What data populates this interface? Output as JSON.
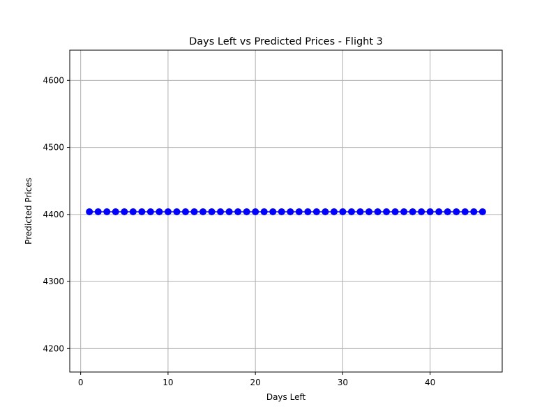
{
  "chart_data": {
    "type": "line",
    "title": "Days Left vs Predicted Prices - Flight 3",
    "xlabel": "Days Left",
    "ylabel": "Predicted Prices",
    "xlim": [
      -1.25,
      48.25
    ],
    "ylim": [
      4165,
      4645
    ],
    "xticks": [
      0,
      10,
      20,
      30,
      40
    ],
    "yticks": [
      4200,
      4300,
      4400,
      4500,
      4600
    ],
    "grid": true,
    "legend": "none",
    "series": [
      {
        "color": "#0000ff",
        "marker": "circle",
        "line": true,
        "x": [
          1,
          2,
          3,
          4,
          5,
          6,
          7,
          8,
          9,
          10,
          11,
          12,
          13,
          14,
          15,
          16,
          17,
          18,
          19,
          20,
          21,
          22,
          23,
          24,
          25,
          26,
          27,
          28,
          29,
          30,
          31,
          32,
          33,
          34,
          35,
          36,
          37,
          38,
          39,
          40,
          41,
          42,
          43,
          44,
          45,
          46
        ],
        "y": [
          4404,
          4404,
          4404,
          4404,
          4404,
          4404,
          4404,
          4404,
          4404,
          4404,
          4404,
          4404,
          4404,
          4404,
          4404,
          4404,
          4404,
          4404,
          4404,
          4404,
          4404,
          4404,
          4404,
          4404,
          4404,
          4404,
          4404,
          4404,
          4404,
          4404,
          4404,
          4404,
          4404,
          4404,
          4404,
          4404,
          4404,
          4404,
          4404,
          4404,
          4404,
          4404,
          4404,
          4404,
          4404,
          4404
        ]
      }
    ]
  }
}
